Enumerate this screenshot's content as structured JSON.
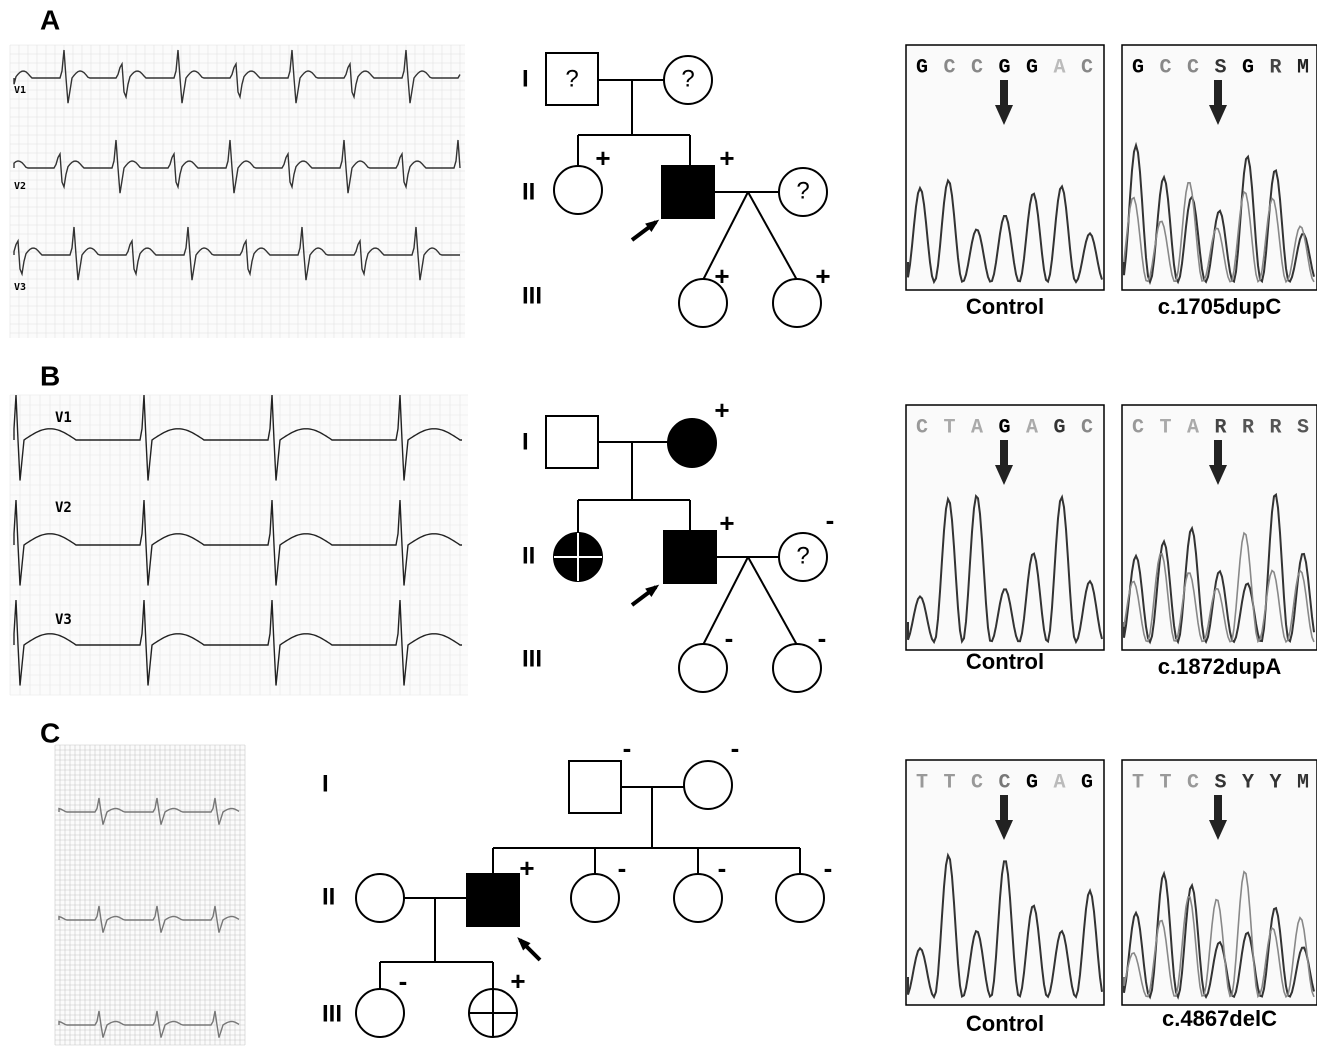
{
  "panels": [
    {
      "label": "A",
      "ecg_leads": [
        "V1",
        "V2",
        "V3"
      ],
      "pedigree": {
        "generations": [
          "I",
          "II",
          "III"
        ],
        "signs": [
          "?",
          "?",
          "+",
          "+",
          "?",
          "+",
          "+"
        ]
      },
      "chromatograms": [
        {
          "bases": [
            "G",
            "C",
            "C",
            "G",
            "G",
            "A",
            "C"
          ],
          "caption": "Control"
        },
        {
          "bases": [
            "G",
            "C",
            "C",
            "S",
            "G",
            "R",
            "M"
          ],
          "caption": "c.1705dupC"
        }
      ]
    },
    {
      "label": "B",
      "ecg_leads": [
        "V1",
        "V2",
        "V3"
      ],
      "pedigree": {
        "generations": [
          "I",
          "II",
          "III"
        ],
        "signs": [
          "+",
          "+",
          "-",
          "?",
          "-",
          "-"
        ]
      },
      "chromatograms": [
        {
          "bases": [
            "C",
            "T",
            "A",
            "G",
            "A",
            "G",
            "C"
          ],
          "caption": "Control"
        },
        {
          "bases": [
            "C",
            "T",
            "A",
            "R",
            "R",
            "R",
            "S"
          ],
          "caption": "c.1872dupA"
        }
      ]
    },
    {
      "label": "C",
      "pedigree": {
        "generations": [
          "I",
          "II",
          "III"
        ],
        "signs": [
          "-",
          "-",
          "+",
          "-",
          "-",
          "-",
          "-",
          "+"
        ]
      },
      "chromatograms": [
        {
          "bases": [
            "T",
            "T",
            "C",
            "C",
            "G",
            "A",
            "G"
          ],
          "caption": "Control"
        },
        {
          "bases": [
            "T",
            "T",
            "C",
            "S",
            "Y",
            "Y",
            "M"
          ],
          "caption": "c.4867delC"
        }
      ]
    }
  ]
}
